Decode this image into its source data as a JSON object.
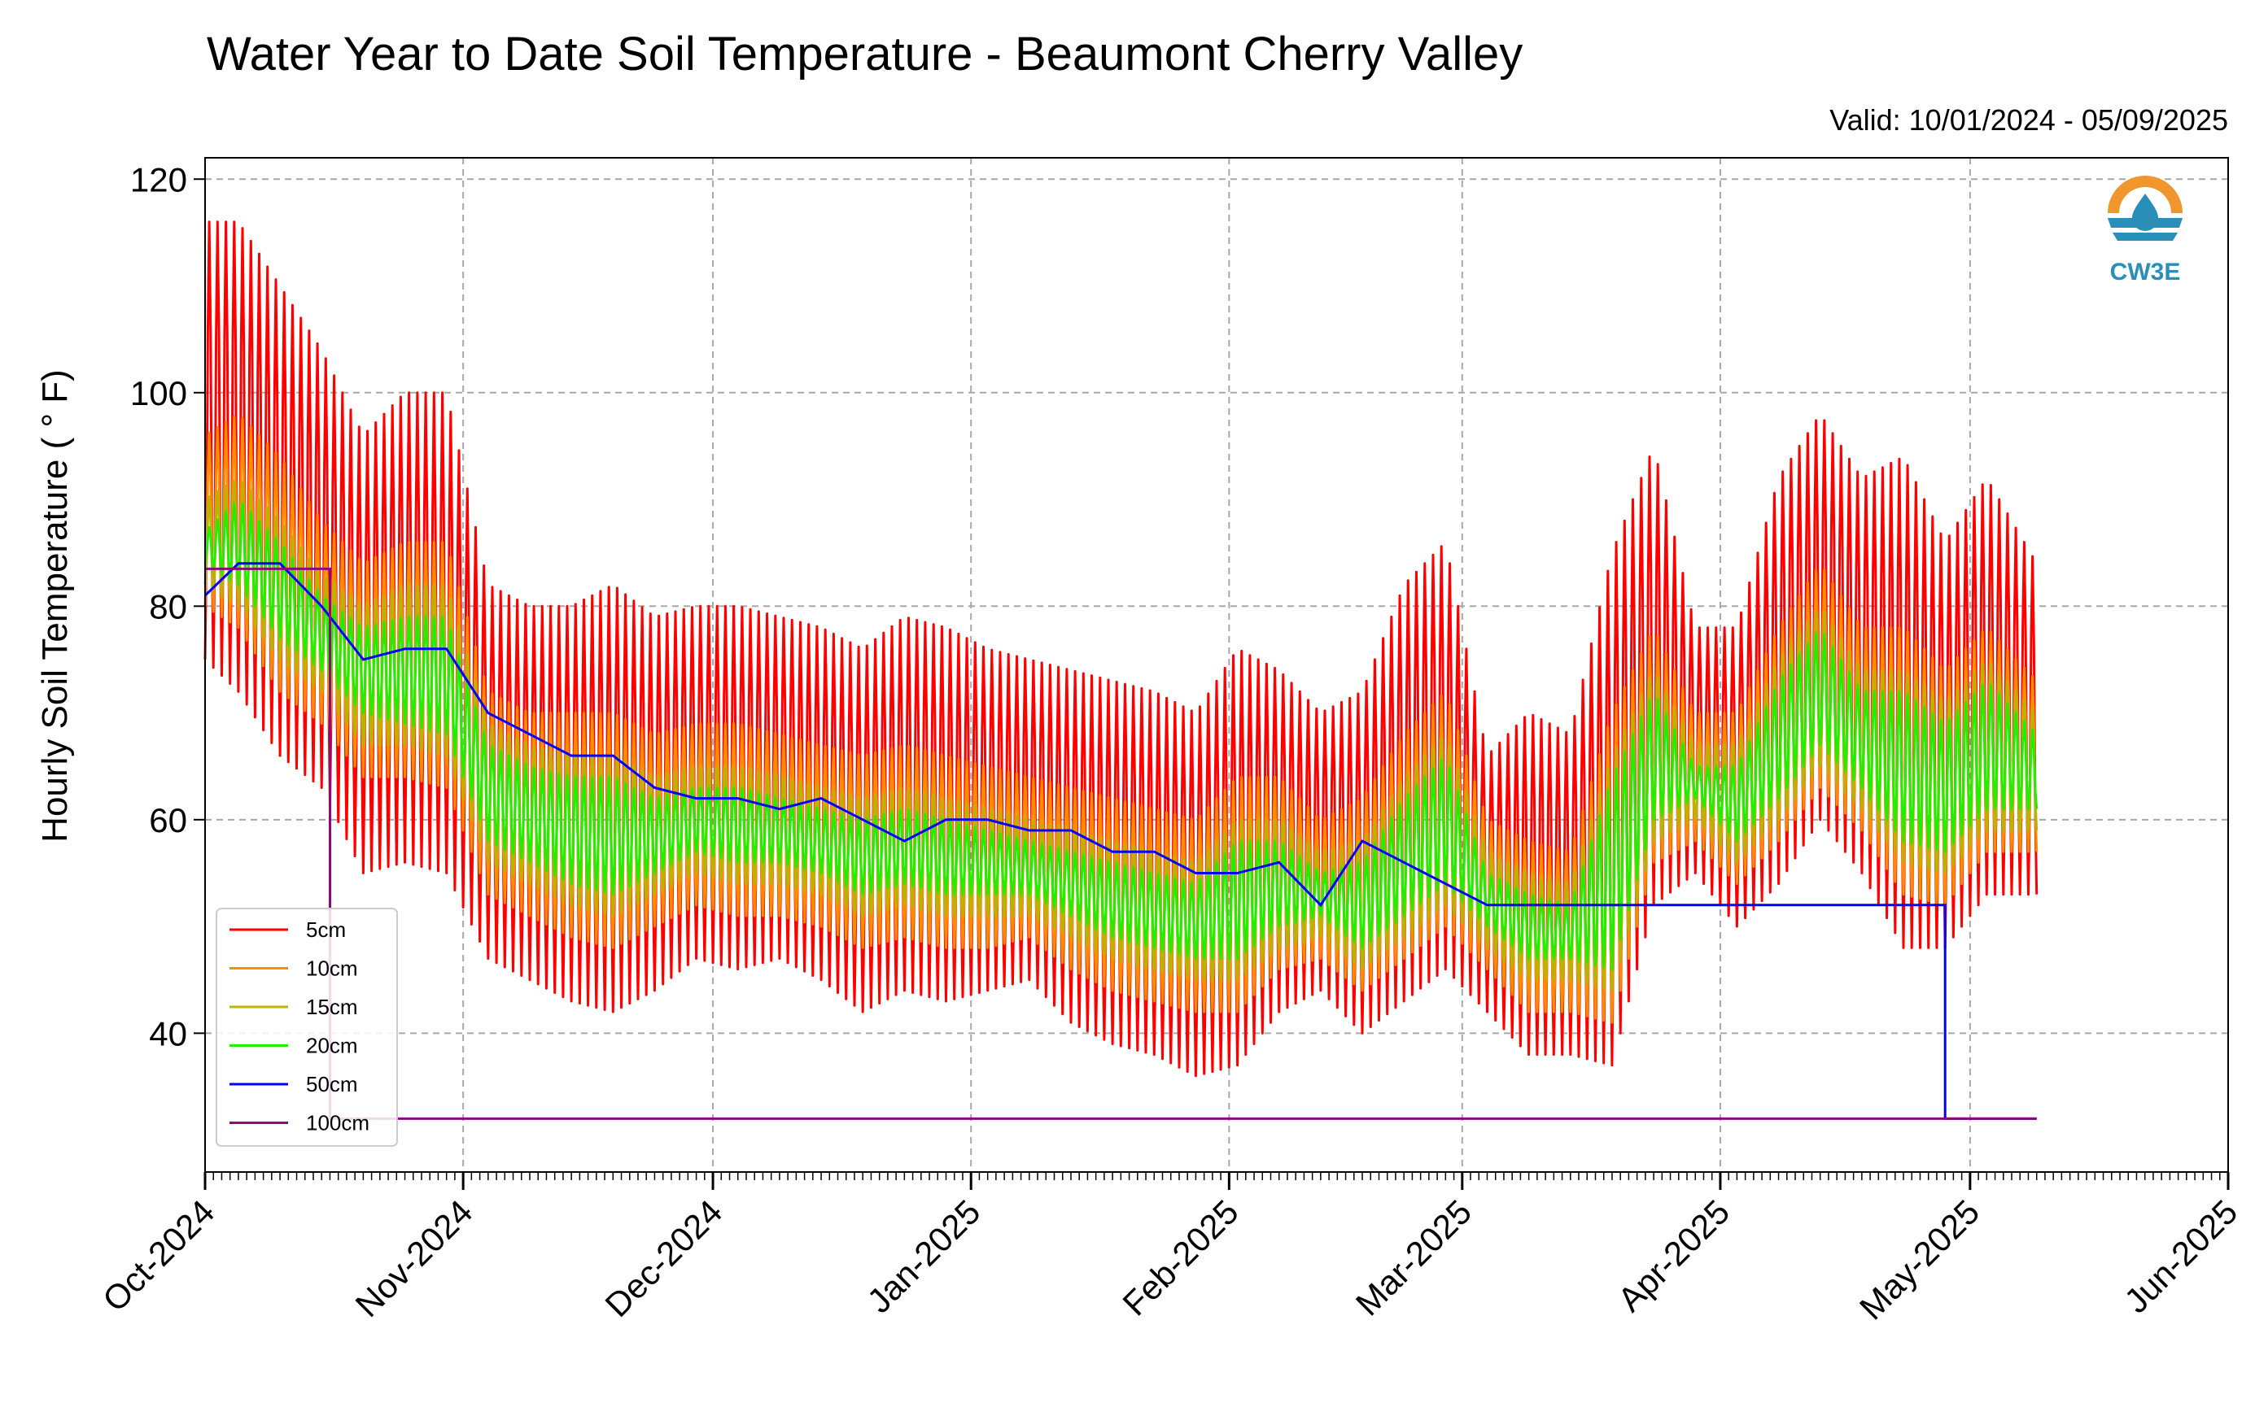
{
  "chart_data": {
    "type": "line",
    "title": "Water Year to Date Soil Temperature - Beaumont Cherry Valley",
    "subtitle": "Valid: 10/01/2024 - 05/09/2025",
    "xlabel": "",
    "ylabel": "Hourly Soil Temperature ( ° F)",
    "xlim": [
      "2024-10-01",
      "2025-06-01"
    ],
    "ylim": [
      27,
      122
    ],
    "y_ticks": [
      40,
      60,
      80,
      100,
      120
    ],
    "x_tick_labels": [
      "Oct-2024",
      "Nov-2024",
      "Dec-2024",
      "Jan-2025",
      "Feb-2025",
      "Mar-2025",
      "Apr-2025",
      "May-2025",
      "Jun-2025"
    ],
    "x_tick_dates": [
      "2024-10-01",
      "2024-11-01",
      "2024-12-01",
      "2025-01-01",
      "2025-02-01",
      "2025-03-01",
      "2025-04-01",
      "2025-05-01",
      "2025-06-01"
    ],
    "grid": true,
    "legend_position": "lower-left",
    "logo_text": "CW3E",
    "series": [
      {
        "name": "5cm",
        "color": "#ff0000",
        "description": "daily max / min envelope",
        "dates": [
          "2024-10-01",
          "2024-10-05",
          "2024-10-10",
          "2024-10-15",
          "2024-10-20",
          "2024-10-25",
          "2024-10-30",
          "2024-11-04",
          "2024-11-09",
          "2024-11-14",
          "2024-11-19",
          "2024-11-24",
          "2024-11-29",
          "2024-12-04",
          "2024-12-09",
          "2024-12-14",
          "2024-12-19",
          "2024-12-24",
          "2024-12-29",
          "2025-01-03",
          "2025-01-08",
          "2025-01-13",
          "2025-01-18",
          "2025-01-23",
          "2025-01-28",
          "2025-02-02",
          "2025-02-07",
          "2025-02-12",
          "2025-02-17",
          "2025-02-22",
          "2025-02-27",
          "2025-03-04",
          "2025-03-09",
          "2025-03-14",
          "2025-03-19",
          "2025-03-24",
          "2025-03-29",
          "2025-04-03",
          "2025-04-08",
          "2025-04-13",
          "2025-04-18",
          "2025-04-23",
          "2025-04-28",
          "2025-05-03",
          "2025-05-09"
        ],
        "max": [
          116,
          116,
          110,
          104,
          96,
          100,
          100,
          82,
          80,
          80,
          82,
          79,
          80,
          80,
          79,
          78,
          76,
          79,
          78,
          76,
          75,
          74,
          73,
          72,
          70,
          76,
          74,
          70,
          72,
          82,
          86,
          66,
          70,
          68,
          85,
          95,
          78,
          78,
          92,
          98,
          92,
          94,
          86,
          92,
          84
        ],
        "min": [
          75,
          72,
          66,
          63,
          55,
          56,
          55,
          47,
          45,
          43,
          42,
          44,
          47,
          46,
          47,
          45,
          42,
          44,
          43,
          44,
          45,
          41,
          39,
          38,
          36,
          37,
          42,
          44,
          40,
          43,
          46,
          42,
          38,
          38,
          37,
          52,
          55,
          50,
          54,
          60,
          55,
          48,
          48,
          53,
          53
        ]
      },
      {
        "name": "10cm",
        "color": "#ff8c00",
        "dates": [
          "2024-10-01",
          "2024-10-05",
          "2024-10-10",
          "2024-10-15",
          "2024-10-20",
          "2024-10-25",
          "2024-10-30",
          "2024-11-04",
          "2024-11-09",
          "2024-11-14",
          "2024-11-19",
          "2024-11-24",
          "2024-11-29",
          "2024-12-04",
          "2024-12-09",
          "2024-12-14",
          "2024-12-19",
          "2024-12-24",
          "2024-12-29",
          "2025-01-03",
          "2025-01-08",
          "2025-01-13",
          "2025-01-18",
          "2025-01-23",
          "2025-01-28",
          "2025-02-02",
          "2025-02-07",
          "2025-02-12",
          "2025-02-17",
          "2025-02-22",
          "2025-02-27",
          "2025-03-04",
          "2025-03-09",
          "2025-03-14",
          "2025-03-19",
          "2025-03-24",
          "2025-03-29",
          "2025-04-03",
          "2025-04-08",
          "2025-04-13",
          "2025-04-18",
          "2025-04-23",
          "2025-04-28",
          "2025-05-03",
          "2025-05-09"
        ],
        "max": [
          96,
          98,
          94,
          88,
          84,
          86,
          86,
          72,
          70,
          70,
          70,
          68,
          69,
          69,
          68,
          67,
          66,
          67,
          66,
          65,
          64,
          63,
          62,
          61,
          60,
          64,
          64,
          60,
          62,
          68,
          72,
          60,
          58,
          57,
          70,
          78,
          70,
          70,
          78,
          84,
          78,
          78,
          74,
          78,
          73
        ],
        "min": [
          80,
          78,
          72,
          69,
          64,
          64,
          63,
          53,
          51,
          49,
          48,
          50,
          52,
          51,
          51,
          50,
          48,
          49,
          48,
          48,
          49,
          46,
          44,
          43,
          42,
          42,
          46,
          47,
          44,
          47,
          50,
          46,
          42,
          42,
          41,
          56,
          58,
          54,
          58,
          63,
          59,
          53,
          52,
          57,
          57
        ]
      },
      {
        "name": "15cm",
        "color": "#b8b400",
        "dates": [
          "2024-10-01",
          "2024-10-05",
          "2024-10-10",
          "2024-10-15",
          "2024-10-20",
          "2024-10-25",
          "2024-10-30",
          "2024-11-04",
          "2024-11-09",
          "2024-11-14",
          "2024-11-19",
          "2024-11-24",
          "2024-11-29",
          "2024-12-04",
          "2024-12-09",
          "2024-12-14",
          "2024-12-19",
          "2024-12-24",
          "2024-12-29",
          "2025-01-03",
          "2025-01-08",
          "2025-01-13",
          "2025-01-18",
          "2025-01-23",
          "2025-01-28",
          "2025-02-02",
          "2025-02-07",
          "2025-02-12",
          "2025-02-17",
          "2025-02-22",
          "2025-02-27",
          "2025-03-04",
          "2025-03-09",
          "2025-03-14",
          "2025-03-19",
          "2025-03-24",
          "2025-03-29",
          "2025-04-03",
          "2025-04-08",
          "2025-04-13",
          "2025-04-18",
          "2025-04-23",
          "2025-04-28",
          "2025-05-03",
          "2025-05-09"
        ],
        "max": [
          90,
          92,
          88,
          83,
          80,
          82,
          82,
          69,
          67,
          66,
          66,
          64,
          65,
          65,
          64,
          63,
          62,
          63,
          62,
          61,
          60,
          59,
          58,
          57,
          56,
          60,
          60,
          57,
          58,
          64,
          68,
          57,
          55,
          54,
          66,
          74,
          67,
          67,
          75,
          80,
          74,
          74,
          71,
          75,
          70
        ],
        "min": [
          82,
          80,
          75,
          72,
          67,
          67,
          66,
          56,
          54,
          52,
          51,
          53,
          55,
          54,
          54,
          53,
          51,
          52,
          51,
          51,
          51,
          49,
          47,
          46,
          45,
          45,
          48,
          49,
          46,
          49,
          52,
          48,
          45,
          45,
          44,
          58,
          60,
          56,
          60,
          65,
          61,
          56,
          55,
          59,
          59
        ]
      },
      {
        "name": "20cm",
        "color": "#22ee00",
        "dates": [
          "2024-10-01",
          "2024-10-05",
          "2024-10-10",
          "2024-10-15",
          "2024-10-20",
          "2024-10-25",
          "2024-10-30",
          "2024-11-04",
          "2024-11-09",
          "2024-11-14",
          "2024-11-19",
          "2024-11-24",
          "2024-11-29",
          "2024-12-04",
          "2024-12-09",
          "2024-12-14",
          "2024-12-19",
          "2024-12-24",
          "2024-12-29",
          "2025-01-03",
          "2025-01-08",
          "2025-01-13",
          "2025-01-18",
          "2025-01-23",
          "2025-01-28",
          "2025-02-02",
          "2025-02-07",
          "2025-02-12",
          "2025-02-17",
          "2025-02-22",
          "2025-02-27",
          "2025-03-04",
          "2025-03-09",
          "2025-03-14",
          "2025-03-19",
          "2025-03-24",
          "2025-03-29",
          "2025-04-03",
          "2025-04-08",
          "2025-04-13",
          "2025-04-18",
          "2025-04-23",
          "2025-04-28",
          "2025-05-03",
          "2025-05-09"
        ],
        "max": [
          87,
          90,
          86,
          81,
          78,
          79,
          79,
          67,
          65,
          64,
          64,
          62,
          63,
          63,
          62,
          61,
          60,
          61,
          60,
          59,
          58,
          57,
          56,
          55,
          54,
          58,
          58,
          55,
          56,
          62,
          66,
          55,
          53,
          52,
          64,
          72,
          65,
          65,
          73,
          78,
          72,
          72,
          69,
          73,
          68
        ],
        "min": [
          84,
          82,
          77,
          74,
          70,
          69,
          68,
          58,
          56,
          54,
          53,
          55,
          57,
          56,
          56,
          55,
          53,
          54,
          53,
          53,
          53,
          51,
          49,
          48,
          47,
          47,
          50,
          51,
          48,
          51,
          54,
          50,
          47,
          47,
          46,
          60,
          62,
          58,
          62,
          67,
          63,
          58,
          57,
          61,
          61
        ]
      },
      {
        "name": "50cm",
        "color": "#0000ff",
        "dates": [
          "2024-10-01",
          "2024-10-05",
          "2024-10-10",
          "2024-10-15",
          "2024-10-20",
          "2024-10-25",
          "2024-10-30",
          "2024-11-04",
          "2024-11-09",
          "2024-11-14",
          "2024-11-19",
          "2024-11-24",
          "2024-11-29",
          "2024-12-04",
          "2024-12-09",
          "2024-12-14",
          "2024-12-19",
          "2024-12-24",
          "2024-12-29",
          "2025-01-03",
          "2025-01-08",
          "2025-01-13",
          "2025-01-18",
          "2025-01-23",
          "2025-01-28",
          "2025-02-02",
          "2025-02-07",
          "2025-02-12",
          "2025-02-17",
          "2025-03-04",
          "2025-03-19",
          "2025-04-03",
          "2025-04-18",
          "2025-04-28",
          "2025-04-28",
          "2025-05-09"
        ],
        "values": [
          81,
          84,
          84,
          80,
          75,
          76,
          76,
          70,
          68,
          66,
          66,
          63,
          62,
          62,
          61,
          62,
          60,
          58,
          60,
          60,
          59,
          59,
          57,
          57,
          55,
          55,
          56,
          52,
          58,
          52,
          52,
          52,
          52,
          52,
          32,
          32
        ]
      },
      {
        "name": "100cm",
        "color": "#8b0a7e",
        "dates": [
          "2024-10-01",
          "2024-10-16",
          "2024-10-16",
          "2025-05-09"
        ],
        "values": [
          83.5,
          83.5,
          32,
          32
        ]
      }
    ]
  }
}
